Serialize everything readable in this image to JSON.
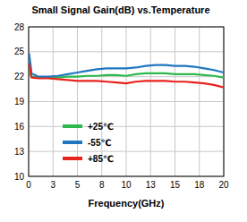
{
  "chart_data": {
    "type": "line",
    "title": "Small Signal Gain(dB) vs.Temperature",
    "x_label": "Frequency(GHz)",
    "x": [
      0.05,
      0.3,
      1,
      2,
      3,
      4,
      5,
      6,
      7,
      8,
      9,
      10,
      11,
      12,
      13,
      14,
      15,
      16,
      17,
      18,
      19,
      20
    ],
    "series": [
      {
        "name": "+25℃",
        "color": "#2db84d",
        "values": [
          22.6,
          22.0,
          21.9,
          21.9,
          21.9,
          22.0,
          22.0,
          22.1,
          22.1,
          22.2,
          22.2,
          22.1,
          22.3,
          22.4,
          22.4,
          22.4,
          22.3,
          22.3,
          22.3,
          22.2,
          22.1,
          21.9
        ]
      },
      {
        "name": "-55℃",
        "color": "#1f77c0",
        "values": [
          24.8,
          22.4,
          22.0,
          22.0,
          22.1,
          22.3,
          22.5,
          22.7,
          22.9,
          23.0,
          23.0,
          23.0,
          23.1,
          23.3,
          23.4,
          23.4,
          23.3,
          23.3,
          23.2,
          23.0,
          22.8,
          22.5
        ]
      },
      {
        "name": "+85℃",
        "color": "#e8231e",
        "values": [
          23.6,
          21.9,
          21.8,
          21.8,
          21.7,
          21.6,
          21.5,
          21.5,
          21.5,
          21.4,
          21.3,
          21.2,
          21.4,
          21.5,
          21.5,
          21.5,
          21.4,
          21.4,
          21.3,
          21.2,
          21.0,
          20.7
        ]
      }
    ],
    "xlim": [
      0,
      20
    ],
    "xticks": [
      0,
      {
        "value": 2.5,
        "label": "3"
      },
      5,
      {
        "value": 7.5,
        "label": "8"
      },
      10,
      {
        "value": 12.5,
        "label": "13"
      },
      15,
      {
        "value": 17.5,
        "label": "18"
      },
      20
    ],
    "ylim": [
      10,
      28
    ],
    "yticks": [
      10,
      13,
      16,
      19,
      22,
      25,
      28
    ],
    "grid": true,
    "legend": "lower left"
  }
}
